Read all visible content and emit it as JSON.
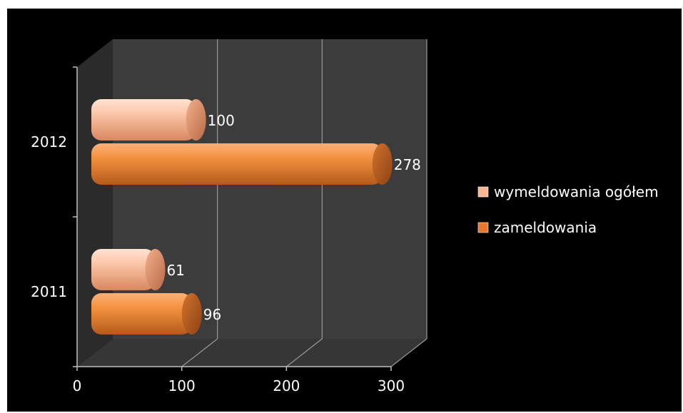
{
  "chart_data": {
    "type": "bar",
    "orientation": "horizontal",
    "style": "3d-cylinder",
    "categories": [
      "2011",
      "2012"
    ],
    "series": [
      {
        "name": "wymeldowania ogółem",
        "values": [
          61,
          100
        ],
        "color": "#f7b593"
      },
      {
        "name": "zameldowania",
        "values": [
          96,
          278
        ],
        "color": "#f0873c"
      }
    ],
    "xlim": [
      0,
      300
    ],
    "x_ticks": [
      "0",
      "100",
      "200",
      "300"
    ],
    "grid": true,
    "legend_position": "right",
    "background": "#000000",
    "plot_color": "#3c3c3c"
  }
}
